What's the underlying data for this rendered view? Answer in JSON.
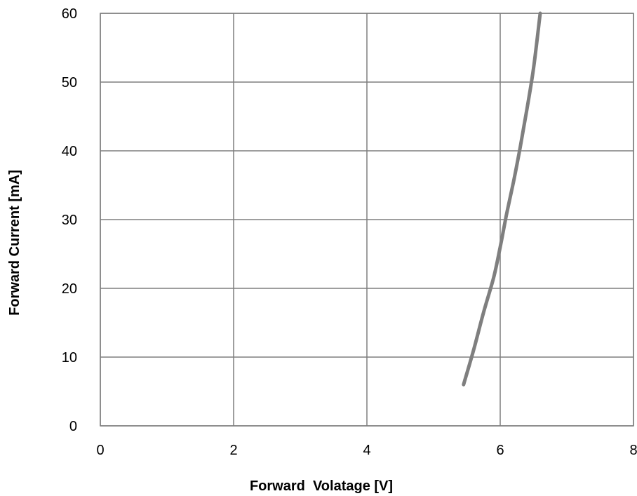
{
  "chart_data": {
    "type": "line",
    "title": "",
    "xlabel": "Forward  Volatage [V]",
    "ylabel": "Forward Current [mA]",
    "xlim": [
      0,
      8
    ],
    "ylim": [
      0,
      60
    ],
    "xticks": [
      0,
      2,
      4,
      6,
      8
    ],
    "yticks": [
      0,
      10,
      20,
      30,
      40,
      50,
      60
    ],
    "x_tick_labels": [
      "0",
      "2",
      "4",
      "6",
      "8"
    ],
    "y_tick_labels": [
      "0",
      "10",
      "20",
      "30",
      "40",
      "50",
      "60"
    ],
    "grid": true,
    "series": [
      {
        "color": "#7f7f7f",
        "x": [
          5.45,
          5.6,
          5.75,
          5.9,
          6.0,
          6.1,
          6.2,
          6.3,
          6.4,
          6.5,
          6.6
        ],
        "y": [
          6,
          11,
          16.5,
          21.5,
          26,
          31,
          35.5,
          40.5,
          46,
          52,
          60
        ]
      }
    ]
  }
}
